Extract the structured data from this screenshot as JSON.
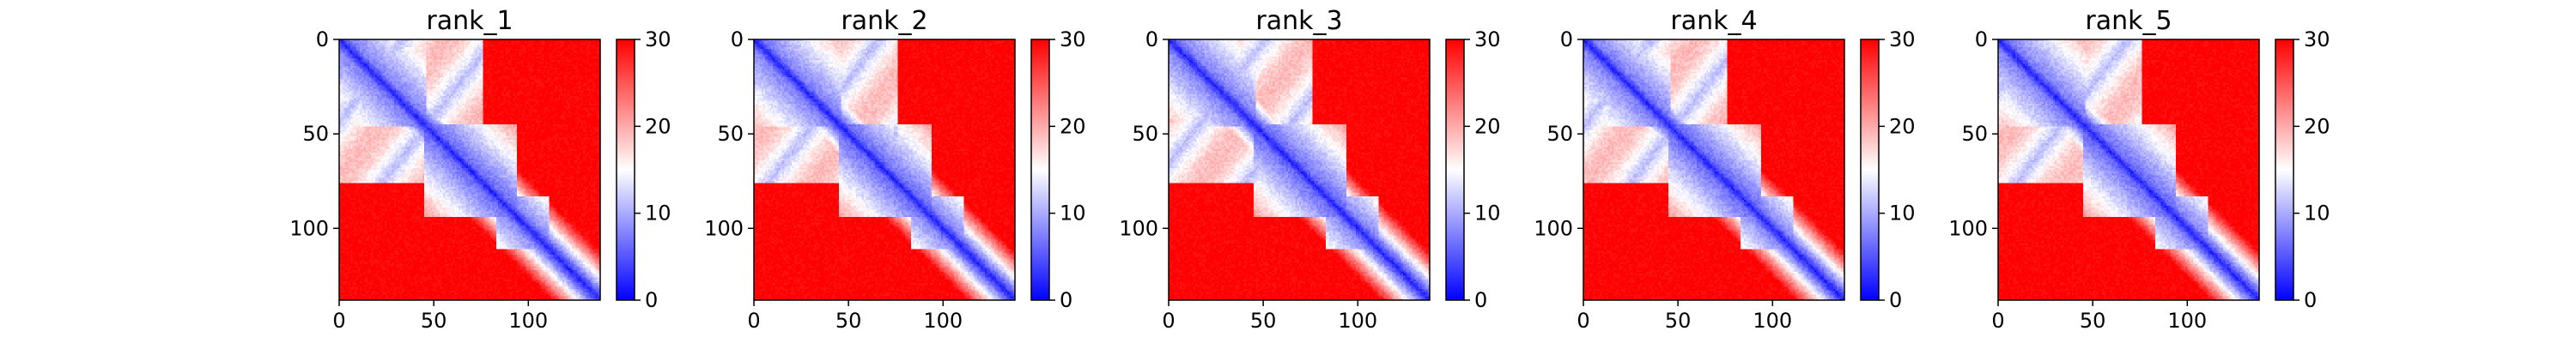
{
  "chart_data": [
    {
      "type": "heatmap",
      "title": "rank_1",
      "x_ticks": [
        0,
        50,
        100
      ],
      "y_ticks": [
        0,
        50,
        100
      ],
      "extent": [
        0,
        138
      ],
      "colorbar": {
        "ticks": [
          0,
          10,
          20,
          30
        ],
        "range": [
          0,
          30
        ],
        "colormap": "bwr"
      }
    },
    {
      "type": "heatmap",
      "title": "rank_2",
      "x_ticks": [
        0,
        50,
        100
      ],
      "y_ticks": [
        0,
        50,
        100
      ],
      "extent": [
        0,
        138
      ],
      "colorbar": {
        "ticks": [
          0,
          10,
          20,
          30
        ],
        "range": [
          0,
          30
        ],
        "colormap": "bwr"
      }
    },
    {
      "type": "heatmap",
      "title": "rank_3",
      "x_ticks": [
        0,
        50,
        100
      ],
      "y_ticks": [
        0,
        50,
        100
      ],
      "extent": [
        0,
        138
      ],
      "colorbar": {
        "ticks": [
          0,
          10,
          20,
          30
        ],
        "range": [
          0,
          30
        ],
        "colormap": "bwr"
      }
    },
    {
      "type": "heatmap",
      "title": "rank_4",
      "x_ticks": [
        0,
        50,
        100
      ],
      "y_ticks": [
        0,
        50,
        100
      ],
      "extent": [
        0,
        138
      ],
      "colorbar": {
        "ticks": [
          0,
          10,
          20,
          30
        ],
        "range": [
          0,
          30
        ],
        "colormap": "bwr"
      }
    },
    {
      "type": "heatmap",
      "title": "rank_5",
      "x_ticks": [
        0,
        50,
        100
      ],
      "y_ticks": [
        0,
        50,
        100
      ],
      "extent": [
        0,
        138
      ],
      "colorbar": {
        "ticks": [
          0,
          10,
          20,
          30
        ],
        "range": [
          0,
          30
        ],
        "colormap": "bwr"
      }
    }
  ],
  "colors": {
    "low": "#0000ff",
    "mid": "#ffffff",
    "high": "#ff0000"
  }
}
